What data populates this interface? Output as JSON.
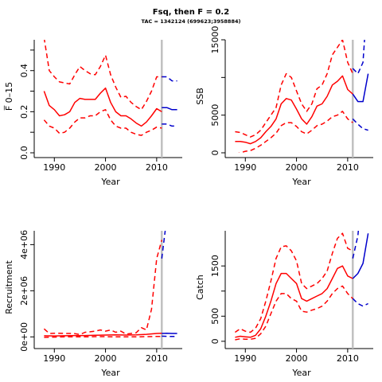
{
  "title": "Fsq, then F = 0.2",
  "subtitle": "TAC = 1342124 (699623;3958884)",
  "colors": {
    "estimate": "#ff0000",
    "projection": "#0000cc",
    "vline": "#c0c0c0"
  },
  "chart_data": [
    {
      "type": "line",
      "ylabel": "F̅ 0–15",
      "xlabel": "Year",
      "xlim": [
        1987,
        2015
      ],
      "ylim": [
        0,
        0.55
      ],
      "xticks": [
        1990,
        2000,
        2010
      ],
      "yticks": [
        0,
        0.1,
        0.2,
        0.3,
        0.4,
        0.5
      ],
      "ytick_labels": [
        "0.0",
        "",
        "0.2",
        "",
        "0.4",
        ""
      ],
      "vline": 2011,
      "series": [
        {
          "role": "median",
          "style": "solid",
          "color": "#ff0000",
          "x": [
            1988,
            1989,
            1990,
            1991,
            1992,
            1993,
            1994,
            1995,
            1996,
            1997,
            1998,
            1999,
            2000,
            2001,
            2002,
            2003,
            2004,
            2005,
            2006,
            2007,
            2008,
            2009,
            2010,
            2011
          ],
          "y": [
            0.3,
            0.23,
            0.21,
            0.18,
            0.185,
            0.2,
            0.245,
            0.265,
            0.26,
            0.26,
            0.26,
            0.29,
            0.315,
            0.245,
            0.2,
            0.18,
            0.18,
            0.165,
            0.145,
            0.13,
            0.15,
            0.18,
            0.215,
            0.2
          ]
        },
        {
          "role": "upper",
          "style": "dashed",
          "color": "#ff0000",
          "x": [
            1988,
            1989,
            1990,
            1991,
            1992,
            1993,
            1994,
            1995,
            1996,
            1997,
            1998,
            1999,
            2000,
            2001,
            2002,
            2003,
            2004,
            2005,
            2006,
            2007,
            2008,
            2009,
            2010,
            2011
          ],
          "y": [
            0.56,
            0.4,
            0.37,
            0.345,
            0.34,
            0.335,
            0.38,
            0.42,
            0.4,
            0.385,
            0.38,
            0.42,
            0.475,
            0.38,
            0.32,
            0.27,
            0.275,
            0.245,
            0.225,
            0.21,
            0.25,
            0.3,
            0.37,
            0.37
          ]
        },
        {
          "role": "lower",
          "style": "dashed",
          "color": "#ff0000",
          "x": [
            1988,
            1989,
            1990,
            1991,
            1992,
            1993,
            1994,
            1995,
            1996,
            1997,
            1998,
            1999,
            2000,
            2001,
            2002,
            2003,
            2004,
            2005,
            2006,
            2007,
            2008,
            2009,
            2010,
            2011
          ],
          "y": [
            0.16,
            0.13,
            0.12,
            0.095,
            0.1,
            0.12,
            0.15,
            0.17,
            0.17,
            0.18,
            0.18,
            0.2,
            0.21,
            0.16,
            0.13,
            0.12,
            0.12,
            0.1,
            0.09,
            0.085,
            0.1,
            0.11,
            0.125,
            0.12
          ]
        },
        {
          "role": "projection-median",
          "style": "solid",
          "color": "#0000cc",
          "x": [
            2011,
            2012,
            2013,
            2014
          ],
          "y": [
            0.22,
            0.22,
            0.21,
            0.21
          ]
        },
        {
          "role": "projection-upper",
          "style": "dashed",
          "color": "#0000cc",
          "x": [
            2011,
            2012,
            2013,
            2014
          ],
          "y": [
            0.37,
            0.37,
            0.35,
            0.35
          ]
        },
        {
          "role": "projection-lower",
          "style": "dashed",
          "color": "#0000cc",
          "x": [
            2011,
            2012,
            2013,
            2014
          ],
          "y": [
            0.14,
            0.14,
            0.13,
            0.13
          ]
        }
      ]
    },
    {
      "type": "line",
      "ylabel": "SSB",
      "xlabel": "Year",
      "xlim": [
        1987,
        2015
      ],
      "ylim": [
        0,
        15000
      ],
      "xticks": [
        1990,
        2000,
        2010
      ],
      "yticks": [
        0,
        5000,
        10000,
        15000
      ],
      "ytick_labels": [
        "0",
        "5000",
        "",
        "15000"
      ],
      "vline": 2011,
      "series": [
        {
          "role": "median",
          "style": "solid",
          "color": "#ff0000",
          "x": [
            1988,
            1989,
            1990,
            1991,
            1992,
            1993,
            1994,
            1995,
            1996,
            1997,
            1998,
            1999,
            2000,
            2001,
            2002,
            2003,
            2004,
            2005,
            2006,
            2007,
            2008,
            2009,
            2010,
            2011
          ],
          "y": [
            1500,
            1500,
            1400,
            1200,
            1500,
            2000,
            2800,
            3500,
            4500,
            6500,
            7200,
            7000,
            5800,
            4500,
            3800,
            4800,
            6200,
            6500,
            7500,
            9000,
            9500,
            10200,
            8400,
            7800
          ]
        },
        {
          "role": "upper",
          "style": "dashed",
          "color": "#ff0000",
          "x": [
            1988,
            1989,
            1990,
            1991,
            1992,
            1993,
            1994,
            1995,
            1996,
            1997,
            1998,
            1999,
            2000,
            2001,
            2002,
            2003,
            2004,
            2005,
            2006,
            2007,
            2008,
            2009,
            2010,
            2011
          ],
          "y": [
            2800,
            2700,
            2400,
            2100,
            2400,
            3000,
            4000,
            5000,
            6000,
            9000,
            10500,
            10000,
            8200,
            6500,
            5500,
            6500,
            8500,
            9000,
            10500,
            13000,
            14000,
            15000,
            12000,
            10500
          ]
        },
        {
          "role": "lower",
          "style": "dashed",
          "color": "#ff0000",
          "x": [
            1988,
            1989,
            1990,
            1991,
            1992,
            1993,
            1994,
            1995,
            1996,
            1997,
            1998,
            1999,
            2000,
            2001,
            2002,
            2003,
            2004,
            2005,
            2006,
            2007,
            2008,
            2009,
            2010,
            2011
          ],
          "y": [
            -200,
            0,
            200,
            300,
            600,
            1000,
            1500,
            2000,
            2600,
            3600,
            4000,
            4000,
            3500,
            2800,
            2500,
            3000,
            3600,
            3800,
            4200,
            4800,
            5000,
            5500,
            4500,
            4000
          ]
        },
        {
          "role": "projection-median",
          "style": "solid",
          "color": "#0000cc",
          "x": [
            2011,
            2012,
            2013,
            2014
          ],
          "y": [
            7800,
            6800,
            6800,
            10500
          ]
        },
        {
          "role": "projection-upper",
          "style": "dashed",
          "color": "#0000cc",
          "x": [
            2011,
            2012,
            2013,
            2014
          ],
          "y": [
            11200,
            10500,
            12000,
            22000
          ]
        },
        {
          "role": "projection-lower",
          "style": "dashed",
          "color": "#0000cc",
          "x": [
            2011,
            2012,
            2013,
            2014
          ],
          "y": [
            4500,
            3800,
            3200,
            3000
          ]
        }
      ]
    },
    {
      "type": "line",
      "ylabel": "Recruitment",
      "xlabel": "Year",
      "xlim": [
        1987,
        2015
      ],
      "ylim": [
        -300000,
        4600000
      ],
      "xticks": [
        1990,
        2000,
        2010
      ],
      "yticks": [
        0,
        2000000,
        4000000
      ],
      "ytick_labels": [
        "0e+00",
        "2e+06",
        "4e+06"
      ],
      "vline": 2011,
      "series": [
        {
          "role": "median",
          "style": "solid",
          "color": "#ff0000",
          "x": [
            1988,
            1990,
            1992,
            1994,
            1996,
            1998,
            2000,
            2002,
            2004,
            2006,
            2008,
            2010,
            2011
          ],
          "y": [
            50000,
            40000,
            50000,
            60000,
            60000,
            70000,
            80000,
            90000,
            80000,
            90000,
            110000,
            150000,
            160000
          ]
        },
        {
          "role": "upper",
          "style": "dashed",
          "color": "#ff0000",
          "x": [
            1988,
            1989,
            1990,
            1991,
            1992,
            1993,
            1994,
            1995,
            1996,
            1997,
            1998,
            1999,
            2000,
            2001,
            2002,
            2003,
            2004,
            2005,
            2006,
            2007,
            2008,
            2009,
            2010,
            2011
          ],
          "y": [
            350000,
            150000,
            160000,
            160000,
            150000,
            150000,
            140000,
            100000,
            200000,
            220000,
            250000,
            300000,
            250000,
            300000,
            200000,
            250000,
            120000,
            150000,
            180000,
            400000,
            300000,
            1200000,
            3400000,
            4200000
          ]
        },
        {
          "role": "lower",
          "style": "dashed",
          "color": "#ff0000",
          "x": [
            1988,
            1990,
            1992,
            1994,
            1996,
            1998,
            2000,
            2002,
            2004,
            2006,
            2008,
            2010,
            2011
          ],
          "y": [
            -20000,
            -10000,
            0,
            0,
            0,
            10000,
            10000,
            0,
            0,
            0,
            10000,
            20000,
            20000
          ]
        },
        {
          "role": "projection-median",
          "style": "solid",
          "color": "#0000cc",
          "x": [
            2011,
            2012,
            2013,
            2014
          ],
          "y": [
            150000,
            160000,
            150000,
            150000
          ]
        },
        {
          "role": "projection-upper",
          "style": "dashed",
          "color": "#0000cc",
          "x": [
            2011,
            2012
          ],
          "y": [
            3400000,
            5200000
          ]
        },
        {
          "role": "projection-lower",
          "style": "dashed",
          "color": "#0000cc",
          "x": [
            2011,
            2012,
            2013,
            2014
          ],
          "y": [
            30000,
            20000,
            20000,
            20000
          ]
        }
      ]
    },
    {
      "type": "line",
      "ylabel": "Catch",
      "xlabel": "Year",
      "xlim": [
        1987,
        2015
      ],
      "ylim": [
        -50,
        2200
      ],
      "xticks": [
        1990,
        2000,
        2010
      ],
      "yticks": [
        0,
        500,
        1000,
        1500
      ],
      "ytick_labels": [
        "0",
        "500",
        "",
        "1500"
      ],
      "vline": 2011,
      "series": [
        {
          "role": "median",
          "style": "solid",
          "color": "#ff0000",
          "x": [
            1988,
            1989,
            1990,
            1991,
            1992,
            1993,
            1994,
            1995,
            1996,
            1997,
            1998,
            1999,
            2000,
            2001,
            2002,
            2003,
            2004,
            2005,
            2006,
            2007,
            2008,
            2009,
            2010,
            2011
          ],
          "y": [
            80,
            100,
            90,
            80,
            120,
            250,
            500,
            800,
            1150,
            1350,
            1350,
            1250,
            1150,
            850,
            800,
            850,
            900,
            950,
            1050,
            1250,
            1450,
            1500,
            1300,
            1250
          ]
        },
        {
          "role": "upper",
          "style": "dashed",
          "color": "#ff0000",
          "x": [
            1988,
            1989,
            1990,
            1991,
            1992,
            1993,
            1994,
            1995,
            1996,
            1997,
            1998,
            1999,
            2000,
            2001,
            2002,
            2003,
            2004,
            2005,
            2006,
            2007,
            2008,
            2009,
            2010,
            2011
          ],
          "y": [
            180,
            250,
            200,
            180,
            260,
            450,
            800,
            1200,
            1650,
            1880,
            1900,
            1800,
            1600,
            1150,
            1050,
            1100,
            1150,
            1250,
            1400,
            1750,
            2050,
            2150,
            1850,
            1800
          ]
        },
        {
          "role": "lower",
          "style": "dashed",
          "color": "#ff0000",
          "x": [
            1988,
            1989,
            1990,
            1991,
            1992,
            1993,
            1994,
            1995,
            1996,
            1997,
            1998,
            1999,
            2000,
            2001,
            2002,
            2003,
            2004,
            2005,
            2006,
            2007,
            2008,
            2009,
            2010,
            2011
          ],
          "y": [
            30,
            50,
            40,
            40,
            60,
            150,
            300,
            550,
            800,
            950,
            950,
            850,
            800,
            600,
            580,
            620,
            650,
            700,
            800,
            950,
            1050,
            1100,
            950,
            850
          ]
        },
        {
          "role": "projection-median",
          "style": "solid",
          "color": "#0000cc",
          "x": [
            2011,
            2012,
            2013,
            2014
          ],
          "y": [
            1250,
            1350,
            1550,
            2150
          ]
        },
        {
          "role": "projection-upper",
          "style": "dashed",
          "color": "#0000cc",
          "x": [
            2011,
            2012,
            2013
          ],
          "y": [
            1650,
            2100,
            3200
          ]
        },
        {
          "role": "projection-lower",
          "style": "dashed",
          "color": "#0000cc",
          "x": [
            2011,
            2012,
            2013,
            2014
          ],
          "y": [
            850,
            750,
            700,
            750
          ]
        }
      ]
    }
  ]
}
